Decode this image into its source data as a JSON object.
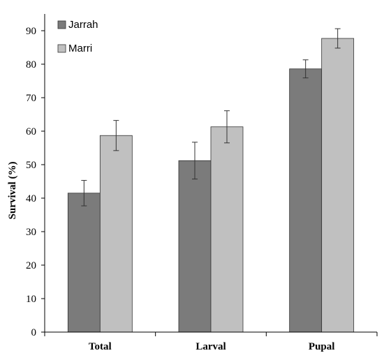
{
  "chart_data": {
    "type": "bar",
    "categories": [
      "Total",
      "Larval",
      "Pupal"
    ],
    "series": [
      {
        "name": "Jarrah",
        "color": "#7b7b7b",
        "values": [
          41.5,
          51.2,
          78.6
        ],
        "errors": [
          3.8,
          5.5,
          2.7
        ]
      },
      {
        "name": "Marri",
        "color": "#c0c0c0",
        "values": [
          58.7,
          61.3,
          87.7
        ],
        "errors": [
          4.5,
          4.8,
          2.9
        ]
      }
    ],
    "xlabel": "",
    "ylabel": "Survival (%)",
    "ylim": [
      0,
      95
    ],
    "yticks": [
      0,
      10,
      20,
      30,
      40,
      50,
      60,
      70,
      80,
      90
    ],
    "grid": false,
    "legend_position": "top-left"
  }
}
